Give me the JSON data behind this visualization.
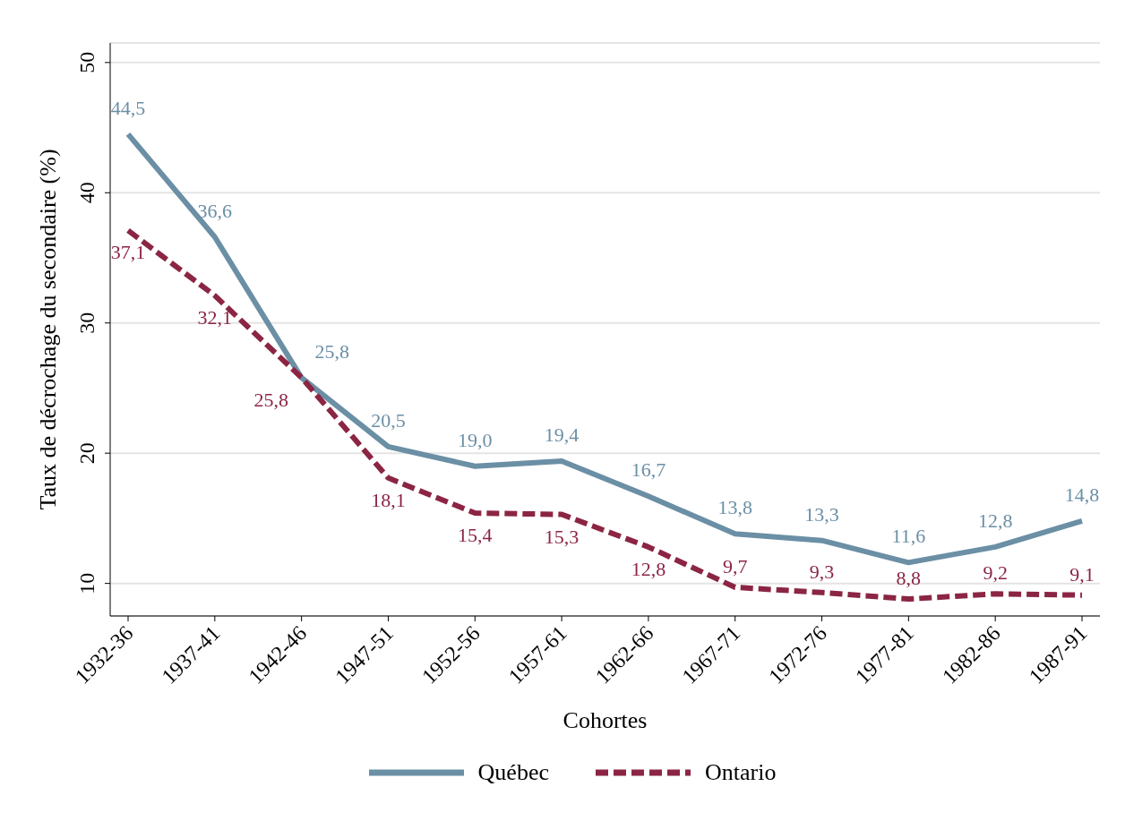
{
  "chart_data": {
    "type": "line",
    "xlabel": "Cohortes",
    "ylabel": "Taux de décrochage du secondaire (%)",
    "categories": [
      "1932-36",
      "1937-41",
      "1942-46",
      "1947-51",
      "1952-56",
      "1957-61",
      "1962-66",
      "1967-71",
      "1972-76",
      "1977-81",
      "1982-86",
      "1987-91"
    ],
    "series": [
      {
        "name": "Québec",
        "color": "#6b8fa5",
        "line_style": "solid",
        "values": [
          44.5,
          36.6,
          25.8,
          20.5,
          19.0,
          19.4,
          16.7,
          13.8,
          13.3,
          11.6,
          12.8,
          14.8
        ],
        "value_labels": [
          "44,5",
          "36,6",
          "25,8",
          "20,5",
          "19,0",
          "19,4",
          "16,7",
          "13,8",
          "13,3",
          "11,6",
          "12,8",
          "14,8"
        ]
      },
      {
        "name": "Ontario",
        "color": "#8b2543",
        "line_style": "dashed",
        "values": [
          37.1,
          32.1,
          25.8,
          18.1,
          15.4,
          15.3,
          12.8,
          9.7,
          9.3,
          8.8,
          9.2,
          9.1
        ],
        "value_labels": [
          "37,1",
          "32,1",
          "25,8",
          "18,1",
          "15,4",
          "15,3",
          "12,8",
          "9,7",
          "9,3",
          "8,8",
          "9,2",
          "9,1"
        ]
      }
    ],
    "ylim": [
      7.5,
      51.5
    ],
    "yticks": [
      10,
      20,
      30,
      40,
      50
    ],
    "grid": "y",
    "legend": "bottom",
    "marker": "none"
  }
}
